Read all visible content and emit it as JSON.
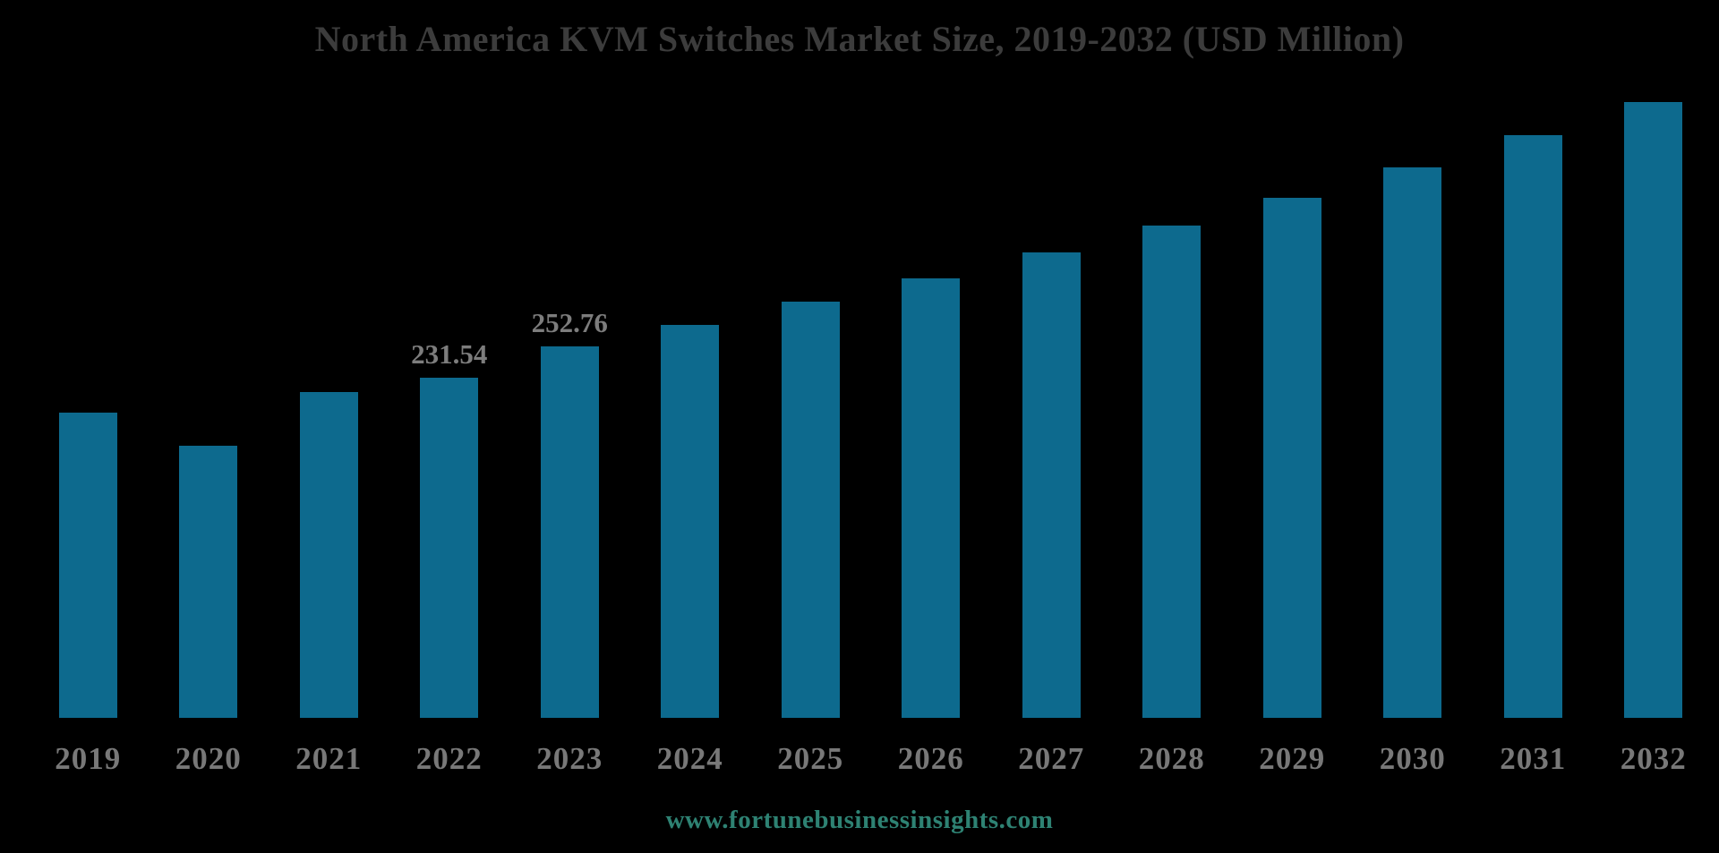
{
  "page": {
    "background": "#000000",
    "footer": {
      "text": "www.fortunebusinessinsights.com",
      "color": "#2e8273"
    }
  },
  "chart_data": {
    "type": "bar",
    "title": "North America KVM Switches Market Size, 2019-2032 (USD Million)",
    "categories": [
      "2019",
      "2020",
      "2021",
      "2022",
      "2023",
      "2024",
      "2025",
      "2026",
      "2027",
      "2028",
      "2029",
      "2030",
      "2031",
      "2032"
    ],
    "values": [
      207.4,
      185.3,
      221.8,
      231.54,
      252.76,
      267.35,
      282.8,
      299.1,
      316.4,
      334.6,
      353.9,
      374.4,
      396.0,
      418.8
    ],
    "visible_data_labels": {
      "2022": "231.54",
      "2023": "252.76"
    },
    "xlabel": "",
    "ylabel": "",
    "ylim": [
      0,
      420
    ],
    "grid": false,
    "legend_position": "none",
    "colors": {
      "bar": "#0d6a8e",
      "title": "#3c3c3c",
      "axis_labels": "#787878",
      "data_labels": "#7d7d7d"
    }
  }
}
